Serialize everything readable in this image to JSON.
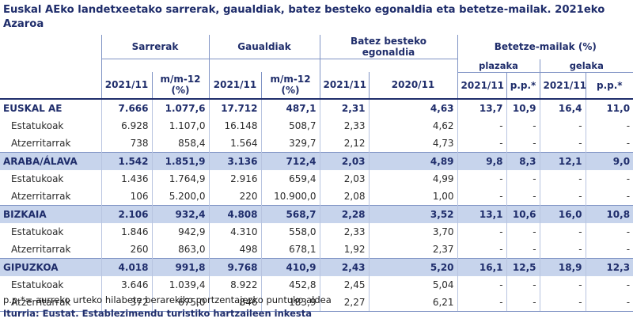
{
  "title": "Euskal AEko landetxeetako sarrerak, gaualdiak, batez besteko egonaldia eta betetze-mailak.  2021eko Azaroa",
  "headers": {
    "sarrerak": "Sarrerak",
    "gaualdiak": "Gaualdiak",
    "egonaldia": "Batez besteko egonaldia",
    "betetze": "Betetze-mailak (%)",
    "plazaka": "plazaka",
    "gelaka": "gelaka",
    "y2021": "2021/11",
    "mm12_line1": "m/m-12",
    "mm12_line2": "(%)",
    "y2020": "2020/11",
    "pp": "p.p.*"
  },
  "rows": [
    {
      "type": "main",
      "shade": false,
      "name": "EUSKAL AE",
      "sar": "7.666",
      "sar_pct": "1.077,6",
      "gau": "17.712",
      "gau_pct": "487,1",
      "eg21": "2,31",
      "eg20": "4,63",
      "pl21": "13,7",
      "pl_pp": "10,9",
      "ge21": "16,4",
      "ge_pp": "11,0"
    },
    {
      "type": "sub",
      "shade": false,
      "name": "Estatukoak",
      "sar": "6.928",
      "sar_pct": "1.107,0",
      "gau": "16.148",
      "gau_pct": "508,7",
      "eg21": "2,33",
      "eg20": "4,62",
      "pl21": "-",
      "pl_pp": "-",
      "ge21": "-",
      "ge_pp": "-"
    },
    {
      "type": "sub",
      "shade": false,
      "name": "Atzerritarrak",
      "sar": "738",
      "sar_pct": "858,4",
      "gau": "1.564",
      "gau_pct": "329,7",
      "eg21": "2,12",
      "eg20": "4,73",
      "pl21": "-",
      "pl_pp": "-",
      "ge21": "-",
      "ge_pp": "-"
    },
    {
      "type": "main",
      "shade": true,
      "name": "ARABA/ÁLAVA",
      "sar": "1.542",
      "sar_pct": "1.851,9",
      "gau": "3.136",
      "gau_pct": "712,4",
      "eg21": "2,03",
      "eg20": "4,89",
      "pl21": "9,8",
      "pl_pp": "8,3",
      "ge21": "12,1",
      "ge_pp": "9,0"
    },
    {
      "type": "sub",
      "shade": false,
      "name": "Estatukoak",
      "sar": "1.436",
      "sar_pct": "1.764,9",
      "gau": "2.916",
      "gau_pct": "659,4",
      "eg21": "2,03",
      "eg20": "4,99",
      "pl21": "-",
      "pl_pp": "-",
      "ge21": "-",
      "ge_pp": "-"
    },
    {
      "type": "sub",
      "shade": false,
      "name": "Atzerritarrak",
      "sar": "106",
      "sar_pct": "5.200,0",
      "gau": "220",
      "gau_pct": "10.900,0",
      "eg21": "2,08",
      "eg20": "1,00",
      "pl21": "-",
      "pl_pp": "-",
      "ge21": "-",
      "ge_pp": "-"
    },
    {
      "type": "main",
      "shade": true,
      "name": "BIZKAIA",
      "sar": "2.106",
      "sar_pct": "932,4",
      "gau": "4.808",
      "gau_pct": "568,7",
      "eg21": "2,28",
      "eg20": "3,52",
      "pl21": "13,1",
      "pl_pp": "10,6",
      "ge21": "16,0",
      "ge_pp": "10,8"
    },
    {
      "type": "sub",
      "shade": false,
      "name": "Estatukoak",
      "sar": "1.846",
      "sar_pct": "942,9",
      "gau": "4.310",
      "gau_pct": "558,0",
      "eg21": "2,33",
      "eg20": "3,70",
      "pl21": "-",
      "pl_pp": "-",
      "ge21": "-",
      "ge_pp": "-"
    },
    {
      "type": "sub",
      "shade": false,
      "name": "Atzerritarrak",
      "sar": "260",
      "sar_pct": "863,0",
      "gau": "498",
      "gau_pct": "678,1",
      "eg21": "1,92",
      "eg20": "2,37",
      "pl21": "-",
      "pl_pp": "-",
      "ge21": "-",
      "ge_pp": "-"
    },
    {
      "type": "main",
      "shade": true,
      "name": "GIPUZKOA",
      "sar": "4.018",
      "sar_pct": "991,8",
      "gau": "9.768",
      "gau_pct": "410,9",
      "eg21": "2,43",
      "eg20": "5,20",
      "pl21": "16,1",
      "pl_pp": "12,5",
      "ge21": "18,9",
      "ge_pp": "12,3"
    },
    {
      "type": "sub",
      "shade": false,
      "name": "Estatukoak",
      "sar": "3.646",
      "sar_pct": "1.039,4",
      "gau": "8.922",
      "gau_pct": "452,8",
      "eg21": "2,45",
      "eg20": "5,04",
      "pl21": "-",
      "pl_pp": "-",
      "ge21": "-",
      "ge_pp": "-"
    },
    {
      "type": "sub",
      "shade": false,
      "name": "Atzerritarrak",
      "sar": "372",
      "sar_pct": "675,0",
      "gau": "846",
      "gau_pct": "183,9",
      "eg21": "2,27",
      "eg20": "6,21",
      "pl21": "-",
      "pl_pp": "-",
      "ge21": "-",
      "ge_pp": "-"
    }
  ],
  "footnote": "p.p.*= aurreko urteko hilabete berarekiko portzentajezko puntuko aldea",
  "source": "Iturria: Eustat. Establezimendu turistiko hartzaileen inkesta"
}
